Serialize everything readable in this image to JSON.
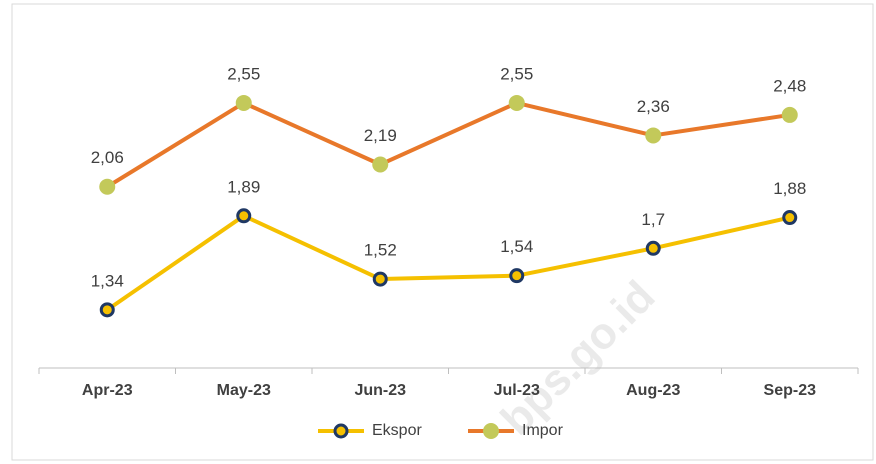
{
  "chart_data": {
    "type": "line",
    "categories": [
      "Apr-23",
      "May-23",
      "Jun-23",
      "Jul-23",
      "Aug-23",
      "Sep-23"
    ],
    "series": [
      {
        "name": "Ekspor",
        "color": "#f5c000",
        "marker_color": "#1f3864",
        "values": [
          1.34,
          1.89,
          1.52,
          1.54,
          1.7,
          1.88
        ],
        "value_labels": [
          "1,34",
          "1,89",
          "1,52",
          "1,54",
          "1,7",
          "1,88"
        ]
      },
      {
        "name": "Impor",
        "color": "#e8782a",
        "marker_color": "#c3c95a",
        "values": [
          2.06,
          2.55,
          2.19,
          2.55,
          2.36,
          2.48
        ],
        "value_labels": [
          "2,06",
          "2,55",
          "2,19",
          "2,55",
          "2,36",
          "2,48"
        ]
      }
    ],
    "ylim": [
      1,
      3
    ],
    "legend": "bottom",
    "watermark": "bps.go.id"
  }
}
